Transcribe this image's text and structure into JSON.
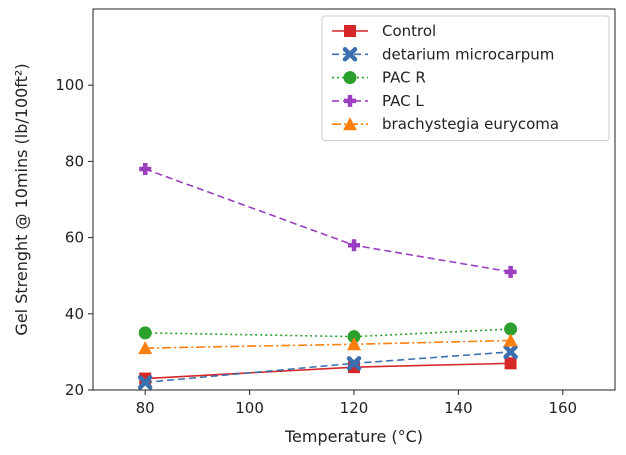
{
  "chart_data": {
    "type": "line",
    "title": "",
    "xlabel": "Temperature  (°C)",
    "ylabel": "Gel Strenght @ 10mins (lb/100ft²)",
    "xlim": [
      70,
      170
    ],
    "ylim": [
      20,
      120
    ],
    "xticks": [
      "80",
      "100",
      "120",
      "140",
      "160"
    ],
    "yticks": [
      "20",
      "40",
      "60",
      "80",
      "100"
    ],
    "x": [
      80,
      120,
      150
    ],
    "legend_position": "top-right",
    "grid": false,
    "series": [
      {
        "name": "Control",
        "values": [
          23,
          26,
          27
        ],
        "color": "#d62728",
        "linestyle": "solid",
        "marker": "square"
      },
      {
        "name": "detarium microcarpum",
        "values": [
          22,
          27,
          30
        ],
        "color": "#3a6fb0",
        "linestyle": "dashed",
        "marker": "x"
      },
      {
        "name": "PAC R",
        "values": [
          35,
          34,
          36
        ],
        "color": "#2ca02c",
        "linestyle": "dotted",
        "marker": "circle"
      },
      {
        "name": "PAC L",
        "values": [
          78,
          58,
          51
        ],
        "color": "#9b3fc0",
        "linestyle": "dashed",
        "marker": "plus"
      },
      {
        "name": "brachystegia eurycoma",
        "values": [
          31,
          32,
          33
        ],
        "color": "#ff7f0e",
        "linestyle": "dashdot",
        "marker": "triangle"
      }
    ]
  }
}
